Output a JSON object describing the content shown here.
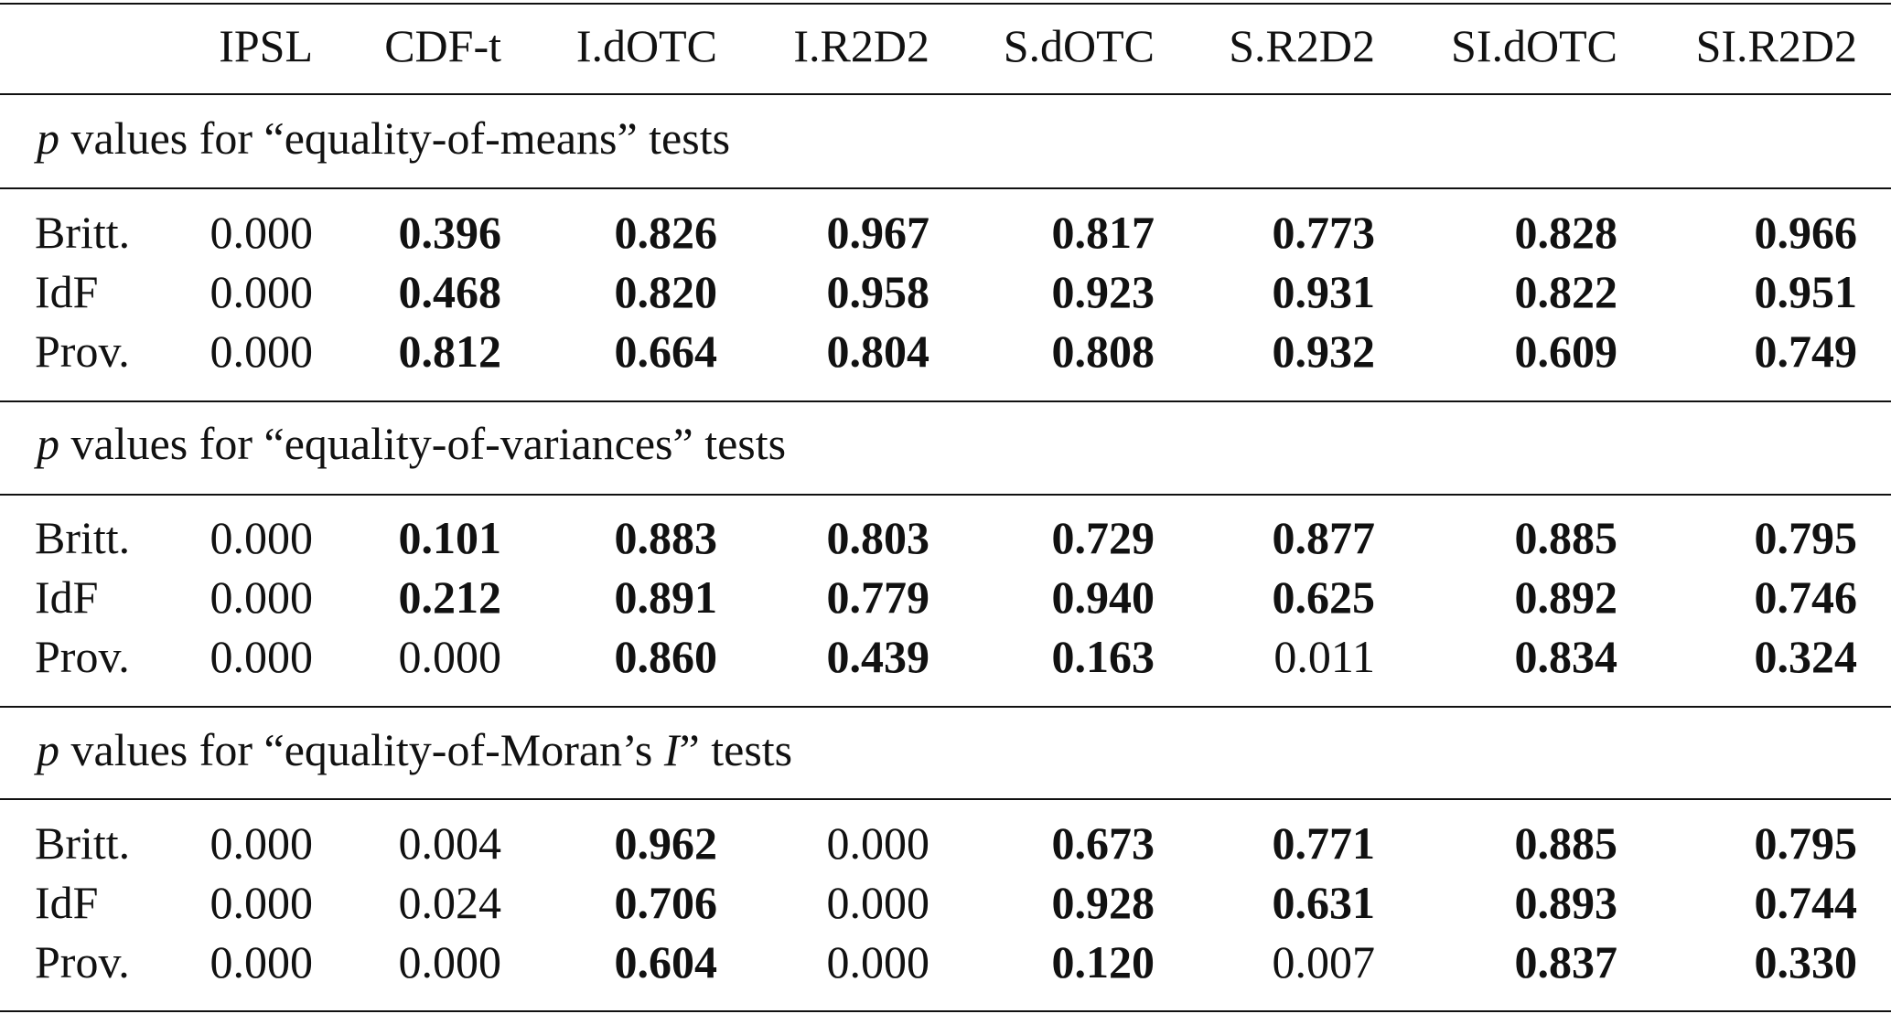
{
  "header": [
    "IPSL",
    "CDF-t",
    "I.dOTC",
    "I.R2D2",
    "S.dOTC",
    "S.R2D2",
    "SI.dOTC",
    "SI.R2D2"
  ],
  "sections": [
    {
      "title_italic": "p",
      "title_text": " values for “equality-of-means” tests",
      "title_italic2": "",
      "title_tail": "",
      "rows": [
        {
          "label": "Britt.",
          "values": [
            "0.000",
            "0.396",
            "0.826",
            "0.967",
            "0.817",
            "0.773",
            "0.828",
            "0.966"
          ],
          "bold": [
            false,
            true,
            true,
            true,
            true,
            true,
            true,
            true
          ]
        },
        {
          "label": "IdF",
          "values": [
            "0.000",
            "0.468",
            "0.820",
            "0.958",
            "0.923",
            "0.931",
            "0.822",
            "0.951"
          ],
          "bold": [
            false,
            true,
            true,
            true,
            true,
            true,
            true,
            true
          ]
        },
        {
          "label": "Prov.",
          "values": [
            "0.000",
            "0.812",
            "0.664",
            "0.804",
            "0.808",
            "0.932",
            "0.609",
            "0.749"
          ],
          "bold": [
            false,
            true,
            true,
            true,
            true,
            true,
            true,
            true
          ]
        }
      ]
    },
    {
      "title_italic": "p",
      "title_text": " values for “equality-of-variances” tests",
      "title_italic2": "",
      "title_tail": "",
      "rows": [
        {
          "label": "Britt.",
          "values": [
            "0.000",
            "0.101",
            "0.883",
            "0.803",
            "0.729",
            "0.877",
            "0.885",
            "0.795"
          ],
          "bold": [
            false,
            true,
            true,
            true,
            true,
            true,
            true,
            true
          ]
        },
        {
          "label": "IdF",
          "values": [
            "0.000",
            "0.212",
            "0.891",
            "0.779",
            "0.940",
            "0.625",
            "0.892",
            "0.746"
          ],
          "bold": [
            false,
            true,
            true,
            true,
            true,
            true,
            true,
            true
          ]
        },
        {
          "label": "Prov.",
          "values": [
            "0.000",
            "0.000",
            "0.860",
            "0.439",
            "0.163",
            "0.011",
            "0.834",
            "0.324"
          ],
          "bold": [
            false,
            false,
            true,
            true,
            true,
            false,
            true,
            true
          ]
        }
      ]
    },
    {
      "title_italic": "p",
      "title_text": " values for “equality-of-Moran’s ",
      "title_italic2": "I",
      "title_tail": "” tests",
      "rows": [
        {
          "label": "Britt.",
          "values": [
            "0.000",
            "0.004",
            "0.962",
            "0.000",
            "0.673",
            "0.771",
            "0.885",
            "0.795"
          ],
          "bold": [
            false,
            false,
            true,
            false,
            true,
            true,
            true,
            true
          ]
        },
        {
          "label": "IdF",
          "values": [
            "0.000",
            "0.024",
            "0.706",
            "0.000",
            "0.928",
            "0.631",
            "0.893",
            "0.744"
          ],
          "bold": [
            false,
            false,
            true,
            false,
            true,
            true,
            true,
            true
          ]
        },
        {
          "label": "Prov.",
          "values": [
            "0.000",
            "0.000",
            "0.604",
            "0.000",
            "0.120",
            "0.007",
            "0.837",
            "0.330"
          ],
          "bold": [
            false,
            false,
            true,
            false,
            true,
            false,
            true,
            true
          ]
        }
      ]
    }
  ]
}
